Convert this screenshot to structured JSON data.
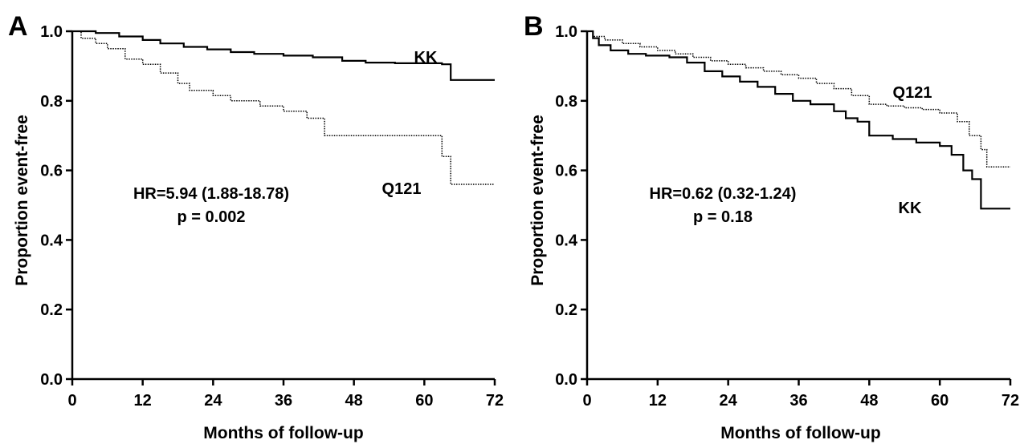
{
  "chart_data": [
    {
      "panel_label": "A",
      "type": "line",
      "step": true,
      "xlabel": "Months of follow-up",
      "ylabel": "Proportion event-free",
      "xlim": [
        0,
        72
      ],
      "ylim": [
        0,
        1.0
      ],
      "xticks": [
        "0",
        "12",
        "24",
        "36",
        "48",
        "60",
        "72"
      ],
      "yticks": [
        "0.0",
        "0.2",
        "0.4",
        "0.6",
        "0.8",
        "1.0"
      ],
      "grid": false,
      "series": [
        {
          "name": "KK",
          "style": "solid",
          "color": "#000000",
          "x": [
            0,
            4,
            8,
            12,
            15,
            19,
            23,
            27,
            31,
            36,
            41,
            46,
            50,
            55,
            60,
            63,
            64.5,
            72
          ],
          "y": [
            1.0,
            0.995,
            0.985,
            0.975,
            0.965,
            0.955,
            0.948,
            0.94,
            0.935,
            0.93,
            0.925,
            0.915,
            0.91,
            0.908,
            0.908,
            0.905,
            0.86,
            0.86
          ]
        },
        {
          "name": "Q121",
          "style": "dotted",
          "color": "#000000",
          "x": [
            0,
            1.5,
            4,
            6,
            9,
            12,
            15,
            18,
            20,
            24,
            27,
            32,
            36,
            40,
            43,
            47,
            52,
            56,
            60,
            63,
            64.5,
            72
          ],
          "y": [
            1.0,
            0.98,
            0.965,
            0.95,
            0.92,
            0.905,
            0.88,
            0.85,
            0.83,
            0.815,
            0.8,
            0.785,
            0.77,
            0.75,
            0.7,
            0.7,
            0.7,
            0.7,
            0.7,
            0.64,
            0.56,
            0.56
          ]
        }
      ],
      "annotations": {
        "hr": "HR=5.94 (1.88-18.78)",
        "p": "p = 0.002",
        "label_top": "KK",
        "label_bottom": "Q121"
      }
    },
    {
      "panel_label": "B",
      "type": "line",
      "step": true,
      "xlabel": "Months of follow-up",
      "ylabel": "Proportion event-free",
      "xlim": [
        0,
        72
      ],
      "ylim": [
        0,
        1.0
      ],
      "xticks": [
        "0",
        "12",
        "24",
        "36",
        "48",
        "60",
        "72"
      ],
      "yticks": [
        "0.0",
        "0.2",
        "0.4",
        "0.6",
        "0.8",
        "1.0"
      ],
      "grid": false,
      "series": [
        {
          "name": "Q121",
          "style": "dotted",
          "color": "#000000",
          "x": [
            0,
            1,
            3,
            6,
            9,
            12,
            15,
            18,
            21,
            24,
            27,
            30,
            33,
            36,
            39,
            42,
            45,
            48,
            51,
            54,
            57,
            60,
            63,
            65,
            67,
            68,
            72
          ],
          "y": [
            1.0,
            0.985,
            0.975,
            0.965,
            0.955,
            0.945,
            0.935,
            0.925,
            0.915,
            0.905,
            0.895,
            0.885,
            0.875,
            0.865,
            0.85,
            0.835,
            0.815,
            0.79,
            0.785,
            0.78,
            0.775,
            0.765,
            0.74,
            0.7,
            0.66,
            0.61,
            0.61
          ]
        },
        {
          "name": "KK",
          "style": "solid",
          "color": "#000000",
          "x": [
            0,
            1,
            2,
            4,
            7,
            10,
            14,
            17,
            20,
            23,
            26,
            29,
            32,
            35,
            38,
            42,
            44,
            46,
            48,
            52,
            56,
            60,
            62,
            64,
            65.5,
            67,
            72
          ],
          "y": [
            1.0,
            0.98,
            0.96,
            0.945,
            0.935,
            0.93,
            0.925,
            0.91,
            0.885,
            0.87,
            0.855,
            0.84,
            0.82,
            0.8,
            0.79,
            0.77,
            0.75,
            0.74,
            0.7,
            0.69,
            0.68,
            0.67,
            0.645,
            0.6,
            0.575,
            0.49,
            0.49
          ]
        }
      ],
      "annotations": {
        "hr": "HR=0.62 (0.32-1.24)",
        "p": "p = 0.18",
        "label_top": "Q121",
        "label_bottom": "KK"
      }
    }
  ]
}
